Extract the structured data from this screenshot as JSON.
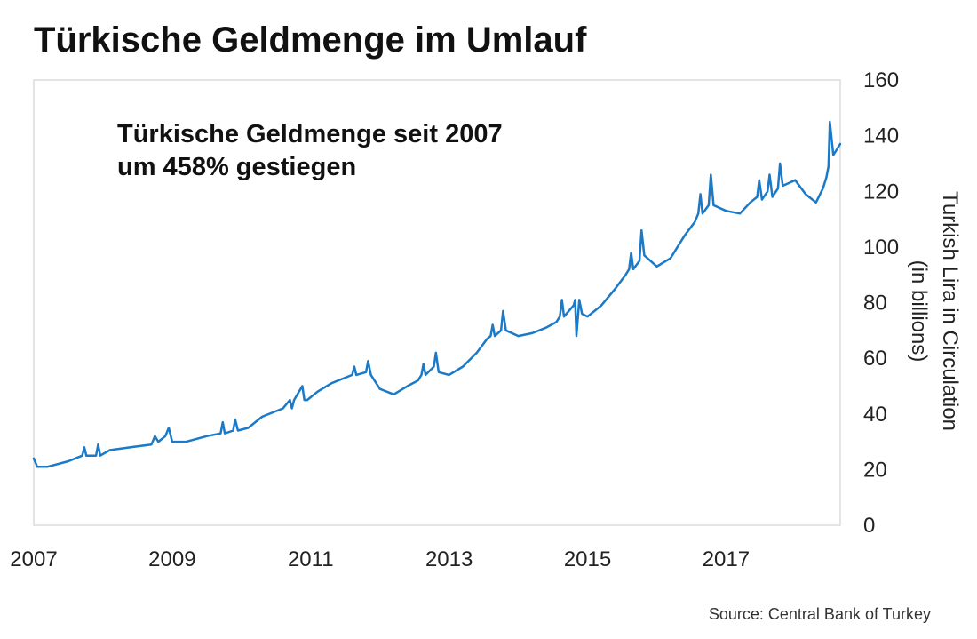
{
  "chart_data": {
    "type": "line",
    "title": "Türkische Geldmenge im Umlauf",
    "annotation_lines": [
      "Türkische Geldmenge seit 2007",
      "um 458% gestiegen"
    ],
    "ylabel_lines": [
      "Turkish Lira in Circulation",
      "(in billions)"
    ],
    "source": "Source: Central Bank of Turkey",
    "xlim": [
      2007,
      2018.65
    ],
    "ylim": [
      0,
      160
    ],
    "x_ticks": [
      "2007",
      "2009",
      "2011",
      "2013",
      "2015",
      "2017"
    ],
    "y_ticks": [
      "0",
      "20",
      "40",
      "60",
      "80",
      "100",
      "120",
      "140",
      "160"
    ],
    "grid": false,
    "line_color": "#1a7ac8",
    "series": [
      {
        "x": [
          2007.0,
          2007.05,
          2007.2,
          2007.5,
          2007.7,
          2007.73,
          2007.76,
          2007.9,
          2007.93,
          2007.96,
          2008.1,
          2008.4,
          2008.7,
          2008.75,
          2008.8,
          2008.9,
          2008.95,
          2009.0,
          2009.2,
          2009.5,
          2009.7,
          2009.73,
          2009.76,
          2009.88,
          2009.91,
          2009.95,
          2010.1,
          2010.3,
          2010.6,
          2010.7,
          2010.73,
          2010.76,
          2010.88,
          2010.91,
          2010.95,
          2011.1,
          2011.3,
          2011.5,
          2011.6,
          2011.63,
          2011.66,
          2011.8,
          2011.83,
          2011.87,
          2012.0,
          2012.2,
          2012.4,
          2012.55,
          2012.6,
          2012.63,
          2012.66,
          2012.78,
          2012.81,
          2012.85,
          2013.0,
          2013.2,
          2013.4,
          2013.55,
          2013.6,
          2013.63,
          2013.66,
          2013.75,
          2013.78,
          2013.82,
          2014.0,
          2014.2,
          2014.4,
          2014.55,
          2014.6,
          2014.63,
          2014.66,
          2014.8,
          2014.82,
          2014.84,
          2014.88,
          2014.92,
          2015.0,
          2015.2,
          2015.4,
          2015.55,
          2015.6,
          2015.63,
          2015.66,
          2015.75,
          2015.78,
          2015.82,
          2016.0,
          2016.2,
          2016.4,
          2016.55,
          2016.6,
          2016.63,
          2016.66,
          2016.75,
          2016.78,
          2016.82,
          2017.0,
          2017.2,
          2017.35,
          2017.45,
          2017.48,
          2017.52,
          2017.6,
          2017.63,
          2017.67,
          2017.75,
          2017.78,
          2017.82,
          2018.0,
          2018.15,
          2018.3,
          2018.4,
          2018.45,
          2018.48,
          2018.5,
          2018.55,
          2018.65
        ],
        "y": [
          24,
          21,
          21,
          23,
          25,
          28,
          25,
          25,
          29,
          25,
          27,
          28,
          29,
          32,
          30,
          32,
          35,
          30,
          30,
          32,
          33,
          37,
          33,
          34,
          38,
          34,
          35,
          39,
          42,
          45,
          42,
          45,
          50,
          45,
          45,
          48,
          51,
          53,
          54,
          57,
          54,
          55,
          59,
          54,
          49,
          47,
          50,
          52,
          54,
          58,
          54,
          57,
          62,
          55,
          54,
          57,
          62,
          67,
          68,
          72,
          68,
          70,
          77,
          70,
          68,
          69,
          71,
          73,
          75,
          81,
          75,
          79,
          81,
          68,
          81,
          76,
          75,
          79,
          85,
          90,
          92,
          98,
          92,
          95,
          106,
          97,
          93,
          96,
          104,
          109,
          112,
          119,
          112,
          115,
          126,
          115,
          113,
          112,
          116,
          118,
          124,
          117,
          120,
          126,
          118,
          121,
          130,
          122,
          124,
          119,
          116,
          121,
          125,
          129,
          145,
          133,
          137
        ]
      }
    ]
  }
}
